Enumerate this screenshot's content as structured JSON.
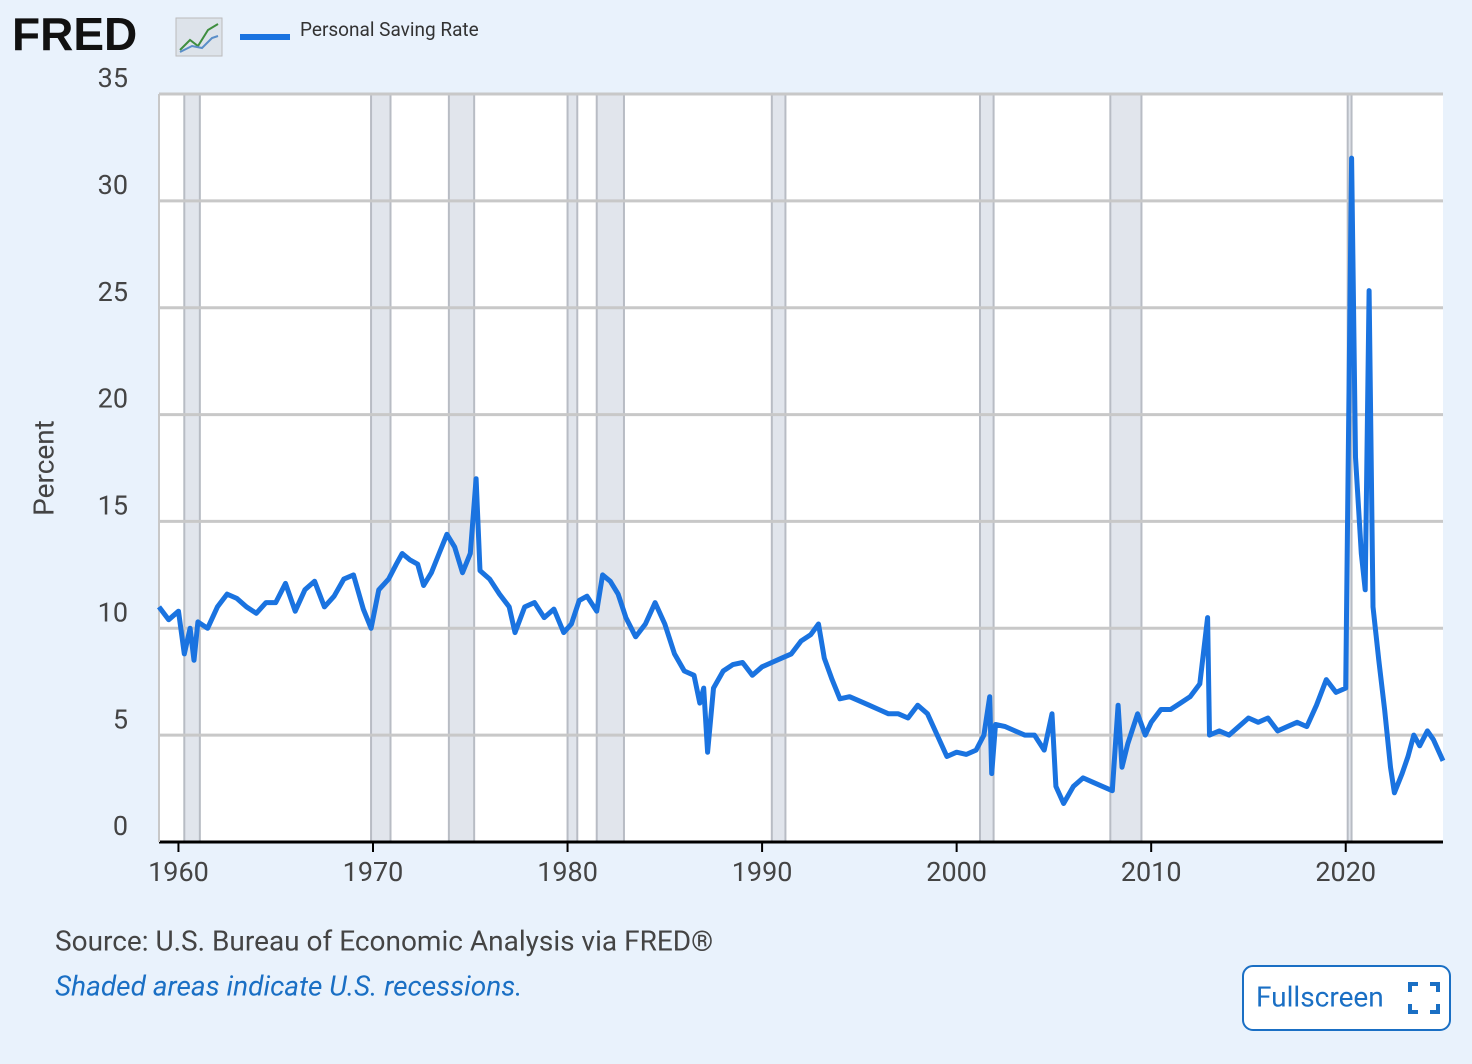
{
  "logo": "FRED",
  "chart_data": {
    "type": "line",
    "y_label": "Percent",
    "series": [
      {
        "name": "Personal Saving Rate",
        "color": "#1a73e0",
        "x": [
          1959.0,
          1959.5,
          1960.0,
          1960.3,
          1960.6,
          1960.8,
          1961.0,
          1961.5,
          1962.0,
          1962.5,
          1963.0,
          1963.5,
          1964.0,
          1964.5,
          1965.0,
          1965.5,
          1966.0,
          1966.5,
          1967.0,
          1967.5,
          1968.0,
          1968.5,
          1969.0,
          1969.5,
          1969.9,
          1970.3,
          1970.8,
          1971.2,
          1971.5,
          1971.9,
          1972.3,
          1972.6,
          1973.0,
          1973.4,
          1973.8,
          1974.2,
          1974.6,
          1975.0,
          1975.3,
          1975.5,
          1976.0,
          1976.5,
          1977.0,
          1977.3,
          1977.8,
          1978.3,
          1978.8,
          1979.3,
          1979.8,
          1980.2,
          1980.6,
          1981.0,
          1981.5,
          1981.8,
          1982.2,
          1982.6,
          1983.0,
          1983.5,
          1984.0,
          1984.5,
          1985.0,
          1985.5,
          1986.0,
          1986.5,
          1986.8,
          1987.0,
          1987.2,
          1987.5,
          1988.0,
          1988.5,
          1989.0,
          1989.5,
          1990.0,
          1990.5,
          1991.0,
          1991.5,
          1992.0,
          1992.5,
          1992.9,
          1993.2,
          1993.6,
          1994.0,
          1994.5,
          1995.0,
          1995.5,
          1996.0,
          1996.5,
          1997.0,
          1997.5,
          1998.0,
          1998.5,
          1999.0,
          1999.5,
          2000.0,
          2000.5,
          2001.0,
          2001.4,
          2001.7,
          2001.8,
          2002.0,
          2002.5,
          2003.0,
          2003.5,
          2004.0,
          2004.5,
          2004.9,
          2005.1,
          2005.5,
          2006.0,
          2006.5,
          2007.0,
          2007.5,
          2008.0,
          2008.3,
          2008.5,
          2008.8,
          2009.3,
          2009.7,
          2010.0,
          2010.5,
          2011.0,
          2011.5,
          2012.0,
          2012.5,
          2012.9,
          2013.0,
          2013.5,
          2014.0,
          2014.5,
          2015.0,
          2015.5,
          2016.0,
          2016.5,
          2017.0,
          2017.5,
          2018.0,
          2018.5,
          2019.0,
          2019.5,
          2020.0,
          2020.3,
          2020.5,
          2020.8,
          2021.0,
          2021.2,
          2021.4,
          2021.7,
          2022.0,
          2022.3,
          2022.5,
          2022.9,
          2023.2,
          2023.5,
          2023.8,
          2024.2,
          2024.5,
          2024.8,
          2025.0
        ],
        "values": [
          11.0,
          10.4,
          10.8,
          8.8,
          10.0,
          8.5,
          10.3,
          10.0,
          11.0,
          11.6,
          11.4,
          11.0,
          10.7,
          11.2,
          11.2,
          12.1,
          10.8,
          11.8,
          12.2,
          11.0,
          11.5,
          12.3,
          12.5,
          10.9,
          10.0,
          11.8,
          12.3,
          13.0,
          13.5,
          13.2,
          13.0,
          12.0,
          12.6,
          13.5,
          14.4,
          13.8,
          12.6,
          13.5,
          17.0,
          12.7,
          12.3,
          11.6,
          11.0,
          9.8,
          11.0,
          11.2,
          10.5,
          10.9,
          9.8,
          10.2,
          11.3,
          11.5,
          10.8,
          12.5,
          12.2,
          11.6,
          10.5,
          9.6,
          10.2,
          11.2,
          10.2,
          8.8,
          8.0,
          7.8,
          6.5,
          7.2,
          4.2,
          7.2,
          8.0,
          8.3,
          8.4,
          7.8,
          8.2,
          8.4,
          8.6,
          8.8,
          9.4,
          9.7,
          10.2,
          8.6,
          7.6,
          6.7,
          6.8,
          6.6,
          6.4,
          6.2,
          6.0,
          6.0,
          5.8,
          6.4,
          6.0,
          5.0,
          4.0,
          4.2,
          4.1,
          4.3,
          5.0,
          6.8,
          3.2,
          5.5,
          5.4,
          5.2,
          5.0,
          5.0,
          4.3,
          6.0,
          2.6,
          1.8,
          2.6,
          3.0,
          2.8,
          2.6,
          2.4,
          6.4,
          3.5,
          4.6,
          6.0,
          5.0,
          5.6,
          6.2,
          6.2,
          6.5,
          6.8,
          7.4,
          10.5,
          5.0,
          5.2,
          5.0,
          5.4,
          5.8,
          5.6,
          5.8,
          5.2,
          5.4,
          5.6,
          5.4,
          6.4,
          7.6,
          7.0,
          7.2,
          32.0,
          18.0,
          13.5,
          11.8,
          25.8,
          11.0,
          8.5,
          6.2,
          3.5,
          2.3,
          3.2,
          4.0,
          5.0,
          4.5,
          5.2,
          4.8,
          4.2,
          3.8
        ]
      }
    ],
    "recessions": [
      [
        1960.3,
        1961.1
      ],
      [
        1969.9,
        1970.9
      ],
      [
        1973.9,
        1975.2
      ],
      [
        1980.0,
        1980.5
      ],
      [
        1981.5,
        1982.9
      ],
      [
        1990.5,
        1991.2
      ],
      [
        2001.2,
        2001.9
      ],
      [
        2007.9,
        2009.5
      ],
      [
        2020.1,
        2020.3
      ]
    ],
    "xlim": [
      1959,
      2025
    ],
    "xticks": [
      1960,
      1970,
      1980,
      1990,
      2000,
      2010,
      2020
    ],
    "ylim": [
      0,
      35
    ],
    "yticks": [
      0,
      5,
      10,
      15,
      20,
      25,
      30,
      35
    ],
    "grid": true,
    "source": "Source: U.S. Bureau of Economic Analysis via FRED®",
    "note": "Shaded areas indicate U.S. recessions.",
    "button": "Fullscreen"
  }
}
